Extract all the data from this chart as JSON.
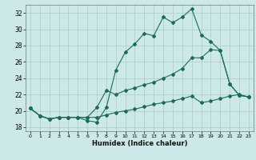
{
  "xlabel": "Humidex (Indice chaleur)",
  "xlim": [
    -0.5,
    23.5
  ],
  "ylim": [
    17.5,
    33.0
  ],
  "yticks": [
    18,
    20,
    22,
    24,
    26,
    28,
    30,
    32
  ],
  "xticks": [
    0,
    1,
    2,
    3,
    4,
    5,
    6,
    7,
    8,
    9,
    10,
    11,
    12,
    13,
    14,
    15,
    16,
    17,
    18,
    19,
    20,
    21,
    22,
    23
  ],
  "bg_color": "#cce8e8",
  "grid_color": "#aacccc",
  "line_color": "#1a6b5a",
  "line1_x": [
    0,
    1,
    2,
    3,
    4,
    5,
    6,
    7,
    8,
    9,
    10,
    11,
    12,
    13,
    14,
    15,
    16,
    17,
    18,
    19,
    20,
    21,
    22,
    23
  ],
  "line1_y": [
    20.3,
    19.4,
    19.0,
    19.2,
    19.2,
    19.2,
    18.8,
    18.6,
    20.4,
    25.0,
    27.2,
    28.2,
    29.5,
    29.2,
    31.5,
    30.8,
    31.5,
    32.5,
    29.3,
    28.5,
    27.4,
    23.3,
    21.9,
    21.7
  ],
  "line2_x": [
    0,
    1,
    2,
    3,
    4,
    5,
    6,
    7,
    8,
    9,
    10,
    11,
    12,
    13,
    14,
    15,
    16,
    17,
    18,
    19,
    20,
    21,
    22,
    23
  ],
  "line2_y": [
    20.3,
    19.4,
    19.0,
    19.2,
    19.2,
    19.2,
    19.2,
    20.4,
    22.5,
    22.0,
    22.5,
    22.8,
    23.2,
    23.5,
    24.0,
    24.5,
    25.2,
    26.5,
    26.5,
    27.5,
    27.4,
    23.3,
    21.9,
    21.7
  ],
  "line3_x": [
    0,
    1,
    2,
    3,
    4,
    5,
    6,
    7,
    8,
    9,
    10,
    11,
    12,
    13,
    14,
    15,
    16,
    17,
    18,
    19,
    20,
    21,
    22,
    23
  ],
  "line3_y": [
    20.3,
    19.4,
    19.0,
    19.2,
    19.2,
    19.2,
    19.2,
    19.2,
    19.5,
    19.8,
    20.0,
    20.2,
    20.5,
    20.8,
    21.0,
    21.2,
    21.5,
    21.8,
    21.0,
    21.2,
    21.5,
    21.8,
    22.0,
    21.7
  ]
}
